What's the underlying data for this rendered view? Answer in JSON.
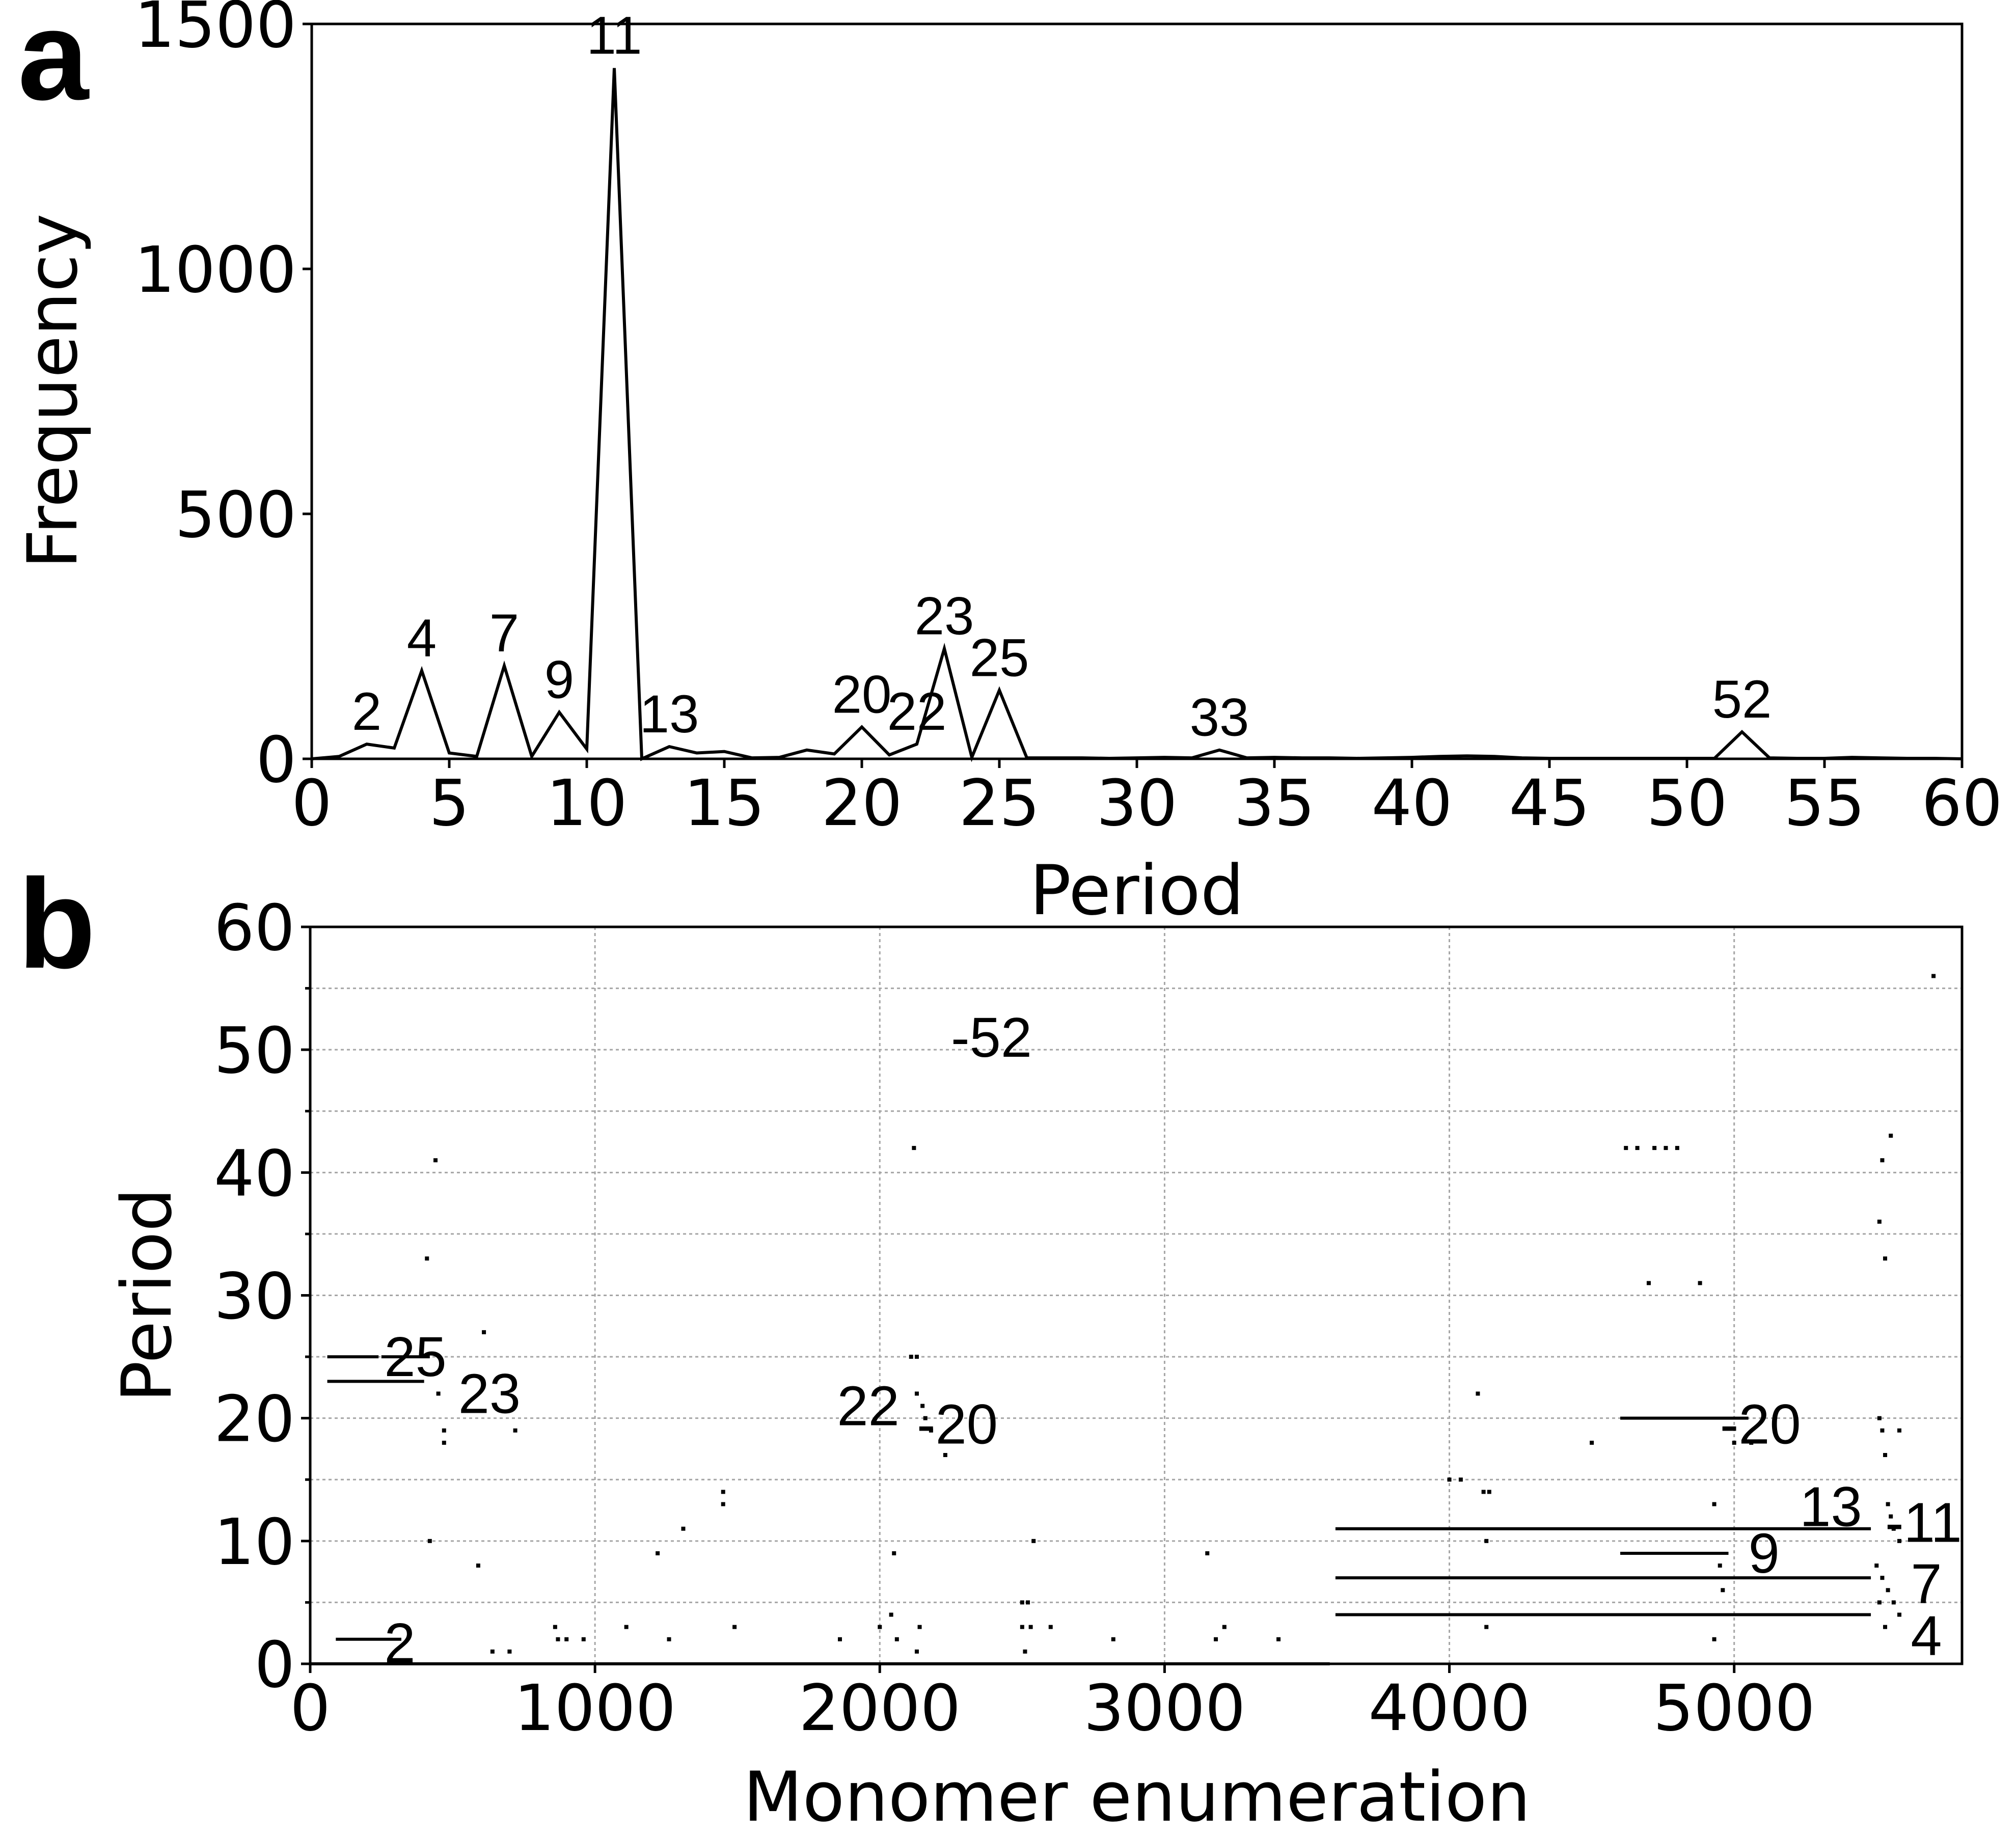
{
  "panels": {
    "a": {
      "letter": "a"
    },
    "b": {
      "letter": "b"
    }
  },
  "chart_data": [
    {
      "type": "line",
      "panel": "a",
      "xlabel": "Period",
      "ylabel": "Frequency",
      "xlim": [
        0,
        60
      ],
      "ylim": [
        0,
        1500
      ],
      "grid": false,
      "xticks": [
        0,
        5,
        10,
        15,
        20,
        25,
        30,
        35,
        40,
        45,
        50,
        55,
        60
      ],
      "yticks": [
        0,
        500,
        1000,
        1500
      ],
      "x": [
        0,
        1,
        2,
        3,
        4,
        5,
        6,
        7,
        8,
        9,
        10,
        11,
        12,
        13,
        14,
        15,
        16,
        17,
        18,
        19,
        20,
        21,
        22,
        23,
        24,
        25,
        26,
        27,
        28,
        29,
        30,
        31,
        32,
        33,
        34,
        35,
        36,
        37,
        38,
        39,
        40,
        41,
        42,
        43,
        44,
        45,
        46,
        47,
        48,
        49,
        50,
        51,
        52,
        53,
        54,
        55,
        56,
        57,
        58,
        59,
        60
      ],
      "y": [
        0,
        5,
        30,
        22,
        180,
        12,
        5,
        190,
        5,
        95,
        20,
        1410,
        0,
        25,
        12,
        15,
        2,
        3,
        18,
        10,
        65,
        8,
        30,
        225,
        3,
        140,
        2,
        2,
        2,
        1,
        2,
        3,
        2,
        18,
        2,
        3,
        2,
        2,
        1,
        2,
        3,
        5,
        6,
        5,
        2,
        1,
        1,
        1,
        1,
        1,
        1,
        1,
        55,
        2,
        1,
        1,
        3,
        2,
        1,
        1,
        0
      ],
      "peak_labels": [
        {
          "text": "2",
          "x": 2,
          "y": 30
        },
        {
          "text": "4",
          "x": 4,
          "y": 180
        },
        {
          "text": "7",
          "x": 7,
          "y": 190
        },
        {
          "text": "9",
          "x": 9,
          "y": 95
        },
        {
          "text": "11",
          "x": 11,
          "y": 1410
        },
        {
          "text": "13",
          "x": 13,
          "y": 25
        },
        {
          "text": "20",
          "x": 20,
          "y": 65
        },
        {
          "text": "22",
          "x": 22,
          "y": 30
        },
        {
          "text": "23",
          "x": 23,
          "y": 225
        },
        {
          "text": "25",
          "x": 25,
          "y": 140
        },
        {
          "text": "33",
          "x": 33,
          "y": 18
        },
        {
          "text": "52",
          "x": 52,
          "y": 55
        }
      ]
    },
    {
      "type": "scatter",
      "panel": "b",
      "xlabel": "Monomer enumeration",
      "ylabel": "Period",
      "xlim": [
        0,
        5800
      ],
      "ylim": [
        0,
        60
      ],
      "grid": true,
      "xticks": [
        0,
        1000,
        2000,
        3000,
        4000,
        5000
      ],
      "yticks": [
        0,
        10,
        20,
        30,
        40,
        50,
        60
      ],
      "y_minor_ticks": [
        5,
        15,
        25,
        35,
        45,
        55
      ],
      "segments": [
        {
          "x0": 0,
          "x1": 3580,
          "y": 0
        },
        {
          "x0": 3600,
          "x1": 5480,
          "y": 11
        },
        {
          "x0": 3600,
          "x1": 5480,
          "y": 7
        },
        {
          "x0": 3600,
          "x1": 5480,
          "y": 4
        },
        {
          "x0": 60,
          "x1": 240,
          "y": 25
        },
        {
          "x0": 250,
          "x1": 420,
          "y": 25
        },
        {
          "x0": 60,
          "x1": 400,
          "y": 23
        },
        {
          "x0": 4600,
          "x1": 4980,
          "y": 9
        },
        {
          "x0": 4600,
          "x1": 5050,
          "y": 20
        },
        {
          "x0": 90,
          "x1": 320,
          "y": 2
        }
      ],
      "points": [
        {
          "x": 440,
          "y": 41
        },
        {
          "x": 410,
          "y": 33
        },
        {
          "x": 420,
          "y": 10
        },
        {
          "x": 450,
          "y": 22
        },
        {
          "x": 470,
          "y": 18
        },
        {
          "x": 470,
          "y": 19
        },
        {
          "x": 590,
          "y": 8
        },
        {
          "x": 610,
          "y": 27
        },
        {
          "x": 720,
          "y": 19
        },
        {
          "x": 640,
          "y": 1
        },
        {
          "x": 700,
          "y": 1
        },
        {
          "x": 860,
          "y": 3
        },
        {
          "x": 870,
          "y": 2
        },
        {
          "x": 900,
          "y": 2
        },
        {
          "x": 960,
          "y": 2
        },
        {
          "x": 1110,
          "y": 3
        },
        {
          "x": 1220,
          "y": 9
        },
        {
          "x": 1260,
          "y": 2
        },
        {
          "x": 1310,
          "y": 11
        },
        {
          "x": 1450,
          "y": 14
        },
        {
          "x": 1450,
          "y": 13
        },
        {
          "x": 1490,
          "y": 3
        },
        {
          "x": 1860,
          "y": 2
        },
        {
          "x": 2000,
          "y": 3
        },
        {
          "x": 2040,
          "y": 4
        },
        {
          "x": 2050,
          "y": 9
        },
        {
          "x": 2060,
          "y": 2
        },
        {
          "x": 2120,
          "y": 42
        },
        {
          "x": 2110,
          "y": 25
        },
        {
          "x": 2130,
          "y": 25
        },
        {
          "x": 2130,
          "y": 22
        },
        {
          "x": 2150,
          "y": 21
        },
        {
          "x": 2160,
          "y": 20
        },
        {
          "x": 2180,
          "y": 19
        },
        {
          "x": 2230,
          "y": 17
        },
        {
          "x": 2130,
          "y": 1
        },
        {
          "x": 2140,
          "y": 3
        },
        {
          "x": 2500,
          "y": 5
        },
        {
          "x": 2520,
          "y": 5
        },
        {
          "x": 2500,
          "y": 3
        },
        {
          "x": 2530,
          "y": 3
        },
        {
          "x": 2510,
          "y": 1
        },
        {
          "x": 2540,
          "y": 10
        },
        {
          "x": 2600,
          "y": 3
        },
        {
          "x": 2820,
          "y": 2
        },
        {
          "x": 3150,
          "y": 9
        },
        {
          "x": 3180,
          "y": 2
        },
        {
          "x": 3210,
          "y": 3
        },
        {
          "x": 3400,
          "y": 2
        },
        {
          "x": 4000,
          "y": 15
        },
        {
          "x": 4040,
          "y": 15
        },
        {
          "x": 4100,
          "y": 22
        },
        {
          "x": 4120,
          "y": 14
        },
        {
          "x": 4140,
          "y": 14
        },
        {
          "x": 4130,
          "y": 10
        },
        {
          "x": 4130,
          "y": 3
        },
        {
          "x": 4500,
          "y": 18
        },
        {
          "x": 4620,
          "y": 42
        },
        {
          "x": 4660,
          "y": 42
        },
        {
          "x": 4720,
          "y": 42
        },
        {
          "x": 4760,
          "y": 42
        },
        {
          "x": 4800,
          "y": 42
        },
        {
          "x": 4700,
          "y": 31
        },
        {
          "x": 4880,
          "y": 31
        },
        {
          "x": 4930,
          "y": 13
        },
        {
          "x": 4950,
          "y": 8
        },
        {
          "x": 4960,
          "y": 6
        },
        {
          "x": 4930,
          "y": 2
        },
        {
          "x": 5060,
          "y": 18
        },
        {
          "x": 5000,
          "y": 18
        },
        {
          "x": 5510,
          "y": 20
        },
        {
          "x": 5520,
          "y": 19
        },
        {
          "x": 5530,
          "y": 17
        },
        {
          "x": 5580,
          "y": 19
        },
        {
          "x": 5520,
          "y": 41
        },
        {
          "x": 5550,
          "y": 43
        },
        {
          "x": 5510,
          "y": 36
        },
        {
          "x": 5530,
          "y": 33
        },
        {
          "x": 5540,
          "y": 13
        },
        {
          "x": 5550,
          "y": 12
        },
        {
          "x": 5560,
          "y": 11
        },
        {
          "x": 5580,
          "y": 10
        },
        {
          "x": 5500,
          "y": 8
        },
        {
          "x": 5520,
          "y": 7
        },
        {
          "x": 5540,
          "y": 6
        },
        {
          "x": 5560,
          "y": 5
        },
        {
          "x": 5510,
          "y": 5
        },
        {
          "x": 5580,
          "y": 4
        },
        {
          "x": 5530,
          "y": 3
        },
        {
          "x": 5700,
          "y": 56
        }
      ],
      "band_labels": [
        {
          "text": "-52",
          "x": 2250,
          "y": 51
        },
        {
          "text": "25",
          "x": 260,
          "y": 25
        },
        {
          "text": "23",
          "x": 520,
          "y": 22
        },
        {
          "text": "22",
          "x": 1850,
          "y": 21
        },
        {
          "text": "-20",
          "x": 2130,
          "y": 19.5
        },
        {
          "text": "-20",
          "x": 4950,
          "y": 19.5
        },
        {
          "text": "13",
          "x": 5230,
          "y": 12.8
        },
        {
          "text": "-11",
          "x": 5530,
          "y": 11.5
        },
        {
          "text": "9",
          "x": 5050,
          "y": 9
        },
        {
          "text": "7",
          "x": 5620,
          "y": 6.5
        },
        {
          "text": "4",
          "x": 5620,
          "y": 2.3
        },
        {
          "text": "2",
          "x": 260,
          "y": 1.7
        }
      ]
    }
  ]
}
